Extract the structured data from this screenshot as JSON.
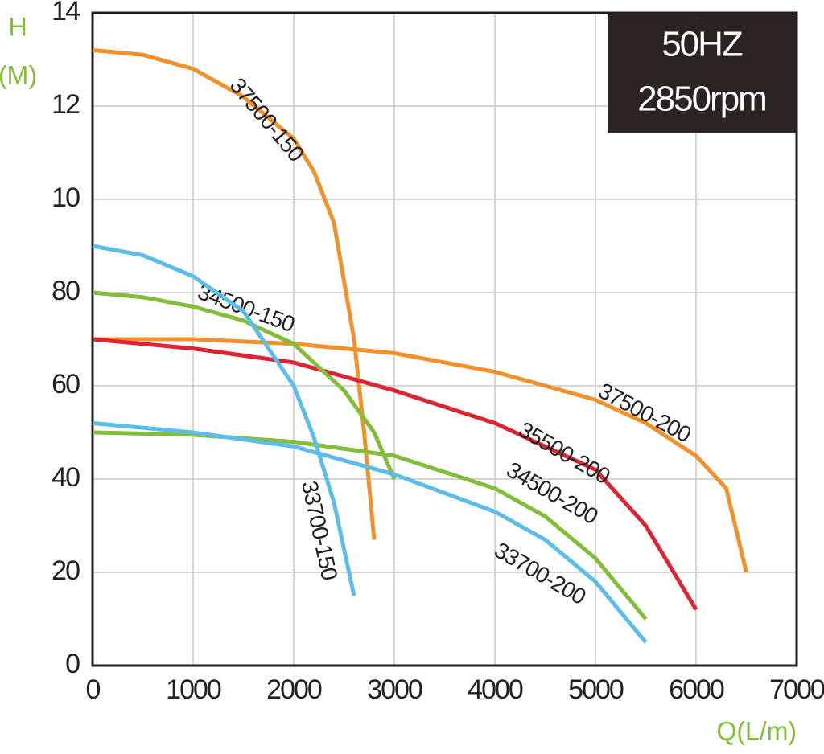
{
  "chart_data": {
    "type": "line",
    "ylabel": [
      "H",
      "(M)"
    ],
    "xlabel": "Q(L/m)",
    "annotation": [
      "50HZ",
      "2850rpm"
    ],
    "xlim": [
      0,
      7000
    ],
    "xticks": [
      0,
      1000,
      2000,
      3000,
      4000,
      5000,
      6000,
      7000
    ],
    "ylim": [
      0,
      14
    ],
    "yticks": [
      0,
      {
        "value": 2,
        "label": "20"
      },
      {
        "value": 4,
        "label": "40"
      },
      {
        "value": 6,
        "label": "60"
      },
      {
        "value": 8,
        "label": "80"
      },
      10,
      12,
      14
    ],
    "grid": true,
    "series": [
      {
        "name": "37500-150",
        "color": "#f0912c",
        "x": [
          0,
          500,
          1000,
          1500,
          2000,
          2200,
          2400,
          2600,
          2700,
          2800
        ],
        "values": [
          13.2,
          13.1,
          12.8,
          12.2,
          11.3,
          10.6,
          9.5,
          7.0,
          5.0,
          2.7
        ]
      },
      {
        "name": "37500-200",
        "color": "#f0912c",
        "x": [
          0,
          1000,
          2000,
          3000,
          4000,
          5000,
          5500,
          6000,
          6300,
          6500
        ],
        "values": [
          7.0,
          7.0,
          6.9,
          6.7,
          6.3,
          5.7,
          5.2,
          4.5,
          3.8,
          2.0
        ]
      },
      {
        "name": "35500-200",
        "color": "#dc2433",
        "x": [
          0,
          1000,
          2000,
          3000,
          4000,
          5000,
          5500,
          6000
        ],
        "values": [
          7.0,
          6.8,
          6.5,
          5.9,
          5.2,
          4.2,
          3.0,
          1.2
        ]
      },
      {
        "name": "34500-150",
        "color": "#82be3a",
        "x": [
          0,
          500,
          1000,
          1500,
          2000,
          2500,
          2800,
          3000
        ],
        "values": [
          8.0,
          7.9,
          7.7,
          7.4,
          6.9,
          5.9,
          5.0,
          4.0
        ]
      },
      {
        "name": "34500-200",
        "color": "#82be3a",
        "x": [
          0,
          1000,
          2000,
          3000,
          4000,
          4500,
          5000,
          5500
        ],
        "values": [
          5.0,
          4.95,
          4.8,
          4.5,
          3.8,
          3.2,
          2.3,
          1.0
        ]
      },
      {
        "name": "33700-150",
        "color": "#5bbde8",
        "x": [
          0,
          500,
          1000,
          1500,
          2000,
          2200,
          2400,
          2600
        ],
        "values": [
          9.0,
          8.8,
          8.35,
          7.6,
          6.0,
          4.9,
          3.5,
          1.5
        ]
      },
      {
        "name": "33700-200",
        "color": "#5bbde8",
        "x": [
          0,
          1000,
          2000,
          3000,
          4000,
          4500,
          5000,
          5500
        ],
        "values": [
          5.2,
          5.0,
          4.7,
          4.1,
          3.3,
          2.7,
          1.8,
          0.5
        ]
      }
    ]
  }
}
